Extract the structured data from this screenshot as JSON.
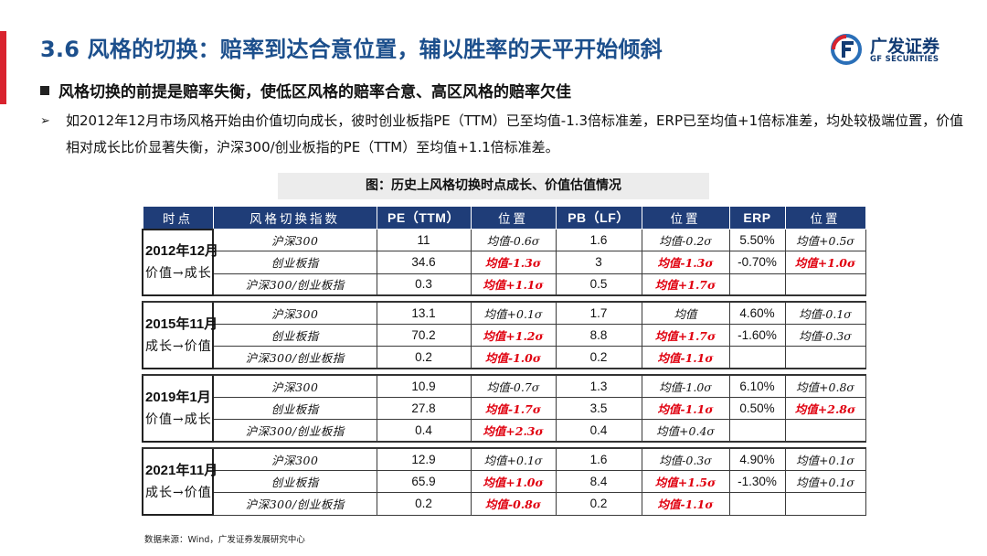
{
  "header": {
    "title": "3.6 风格的切换：赔率到达合意位置，辅以胜率的天平开始倾斜",
    "logo_cn": "广发证券",
    "logo_en": "GF SECURITIES"
  },
  "colors": {
    "accent_red": "#d9232e",
    "brand_blue": "#1c4f8c",
    "table_header": "#1f3d78",
    "highlight_red": "#e0000f"
  },
  "bullet": "风格切换的前提是赔率失衡，使低区风格的赔率合意、高区风格的赔率欠佳",
  "sub_bullet": "如2012年12月市场风格开始由价值切向成长，彼时创业板指PE（TTM）已至均值-1.3倍标准差，ERP已至均值+1倍标准差，均处较极端位置，价值相对成长比价显著失衡，沪深300/创业板指的PE（TTM）至均值+1.1倍标准差。",
  "caption": "图：历史上风格切换时点成长、价值估值情况",
  "table": {
    "headers": [
      "时点",
      "风格切换指数",
      "PE（TTM）",
      "位置",
      "PB（LF）",
      "位置",
      "ERP",
      "位置"
    ],
    "periods": [
      {
        "date": "2012年12月",
        "label": "价值→成长",
        "rows": [
          {
            "name": "沪深300",
            "pe": "11",
            "pe_pos": "均值-0.6σ",
            "pe_red": false,
            "pb": "1.6",
            "pb_pos": "均值-0.2σ",
            "pb_red": false,
            "erp": "5.50%",
            "erp_pos": "均值+0.5σ",
            "erp_red": false
          },
          {
            "name": "创业板指",
            "pe": "34.6",
            "pe_pos": "均值-1.3σ",
            "pe_red": true,
            "pb": "3",
            "pb_pos": "均值-1.3σ",
            "pb_red": true,
            "erp": "-0.70%",
            "erp_pos": "均值+1.0σ",
            "erp_red": true
          },
          {
            "name": "沪深300/创业板指",
            "pe": "0.3",
            "pe_pos": "均值+1.1σ",
            "pe_red": true,
            "pb": "0.5",
            "pb_pos": "均值+1.7σ",
            "pb_red": true,
            "erp": "",
            "erp_pos": "",
            "erp_red": false
          }
        ]
      },
      {
        "date": "2015年11月",
        "label": "成长→价值",
        "rows": [
          {
            "name": "沪深300",
            "pe": "13.1",
            "pe_pos": "均值+0.1σ",
            "pe_red": false,
            "pb": "1.7",
            "pb_pos": "均值",
            "pb_red": false,
            "erp": "4.60%",
            "erp_pos": "均值-0.1σ",
            "erp_red": false
          },
          {
            "name": "创业板指",
            "pe": "70.2",
            "pe_pos": "均值+1.2σ",
            "pe_red": true,
            "pb": "8.8",
            "pb_pos": "均值+1.7σ",
            "pb_red": true,
            "erp": "-1.60%",
            "erp_pos": "均值-0.3σ",
            "erp_red": false
          },
          {
            "name": "沪深300/创业板指",
            "pe": "0.2",
            "pe_pos": "均值-1.0σ",
            "pe_red": true,
            "pb": "0.2",
            "pb_pos": "均值-1.1σ",
            "pb_red": true,
            "erp": "",
            "erp_pos": "",
            "erp_red": false
          }
        ]
      },
      {
        "date": "2019年1月",
        "label": "价值→成长",
        "rows": [
          {
            "name": "沪深300",
            "pe": "10.9",
            "pe_pos": "均值-0.7σ",
            "pe_red": false,
            "pb": "1.3",
            "pb_pos": "均值-1.0σ",
            "pb_red": false,
            "erp": "6.10%",
            "erp_pos": "均值+0.8σ",
            "erp_red": false
          },
          {
            "name": "创业板指",
            "pe": "27.8",
            "pe_pos": "均值-1.7σ",
            "pe_red": true,
            "pb": "3.5",
            "pb_pos": "均值-1.1σ",
            "pb_red": true,
            "erp": "0.50%",
            "erp_pos": "均值+2.8σ",
            "erp_red": true
          },
          {
            "name": "沪深300/创业板指",
            "pe": "0.4",
            "pe_pos": "均值+2.3σ",
            "pe_red": true,
            "pb": "0.4",
            "pb_pos": "均值+0.4σ",
            "pb_red": false,
            "erp": "",
            "erp_pos": "",
            "erp_red": false
          }
        ]
      },
      {
        "date": "2021年11月",
        "label": "成长→价值",
        "rows": [
          {
            "name": "沪深300",
            "pe": "12.9",
            "pe_pos": "均值+0.1σ",
            "pe_red": false,
            "pb": "1.6",
            "pb_pos": "均值-0.3σ",
            "pb_red": false,
            "erp": "4.90%",
            "erp_pos": "均值+0.1σ",
            "erp_red": false
          },
          {
            "name": "创业板指",
            "pe": "65.9",
            "pe_pos": "均值+1.0σ",
            "pe_red": true,
            "pb": "8.4",
            "pb_pos": "均值+1.5σ",
            "pb_red": true,
            "erp": "-1.30%",
            "erp_pos": "均值+0.1σ",
            "erp_red": false
          },
          {
            "name": "沪深300/创业板指",
            "pe": "0.2",
            "pe_pos": "均值-0.8σ",
            "pe_red": true,
            "pb": "0.2",
            "pb_pos": "均值-1.1σ",
            "pb_red": true,
            "erp": "",
            "erp_pos": "",
            "erp_red": false
          }
        ]
      }
    ]
  },
  "source": "数据来源：Wind，广发证券发展研究中心"
}
